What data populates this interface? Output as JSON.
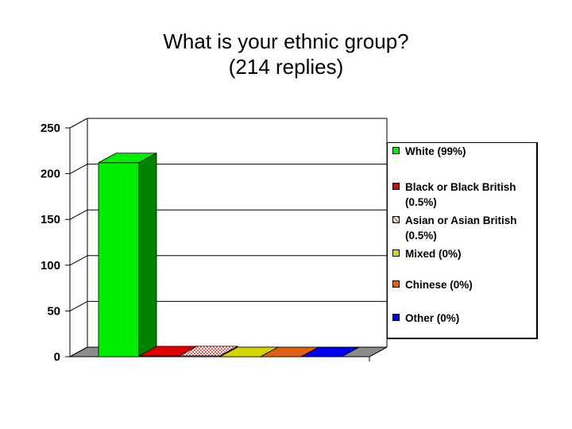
{
  "title": {
    "line1": "What is your ethnic group?",
    "line2": "(214 replies)"
  },
  "chart_data": {
    "type": "bar",
    "title": "What is your ethnic group? (214 replies)",
    "categories": [
      "White (99%)",
      "Black or Black British (0.5%)",
      "Asian or Asian British (0.5%)",
      "Mixed (0%)",
      "Chinese (0%)",
      "Other (0%)"
    ],
    "values": [
      212,
      1,
      1,
      0,
      0,
      0
    ],
    "colors": [
      "#00ee00",
      "#dd0000",
      "#e8a0a0",
      "#d4d400",
      "#e06010",
      "#0000ee"
    ],
    "ylim": [
      0,
      250
    ],
    "yticks": [
      "0",
      "50",
      "100",
      "150",
      "200",
      "250"
    ],
    "grid": true,
    "legend_position": "right",
    "xlabel": "",
    "ylabel": ""
  }
}
